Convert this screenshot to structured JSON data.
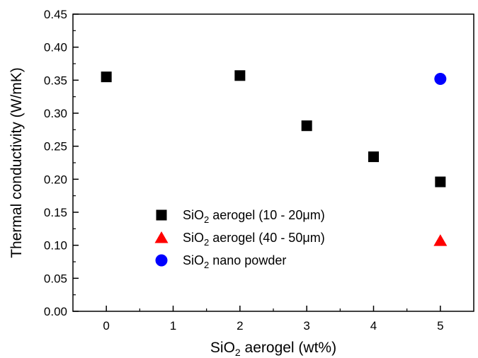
{
  "chart_data": {
    "type": "scatter",
    "xlabel": {
      "base": "SiO",
      "sub": "2",
      "rest": " aerogel (wt%)"
    },
    "ylabel": "Thermal conductivity (W/mK)",
    "xlim": [
      -0.5,
      5.5
    ],
    "ylim": [
      0.0,
      0.45
    ],
    "xtick_positions": [
      0,
      1,
      2,
      3,
      4,
      5
    ],
    "xtick_labels": [
      "0",
      "1",
      "2",
      "3",
      "4",
      "5"
    ],
    "ytick_values": [
      0.0,
      0.05,
      0.1,
      0.15,
      0.2,
      0.25,
      0.3,
      0.35,
      0.4,
      0.45
    ],
    "ytick_labels": [
      "0.00",
      "0.05",
      "0.10",
      "0.15",
      "0.20",
      "0.25",
      "0.30",
      "0.35",
      "0.40",
      "0.45"
    ],
    "grid": false,
    "legend_position": "lower-left",
    "series": [
      {
        "name": {
          "base": "SiO",
          "sub": "2",
          "rest": " aerogel (10 - 20μm)"
        },
        "marker": "square",
        "color": "#000000",
        "points": [
          {
            "x": 0,
            "y": 0.355
          },
          {
            "x": 2,
            "y": 0.357
          },
          {
            "x": 3,
            "y": 0.281
          },
          {
            "x": 4,
            "y": 0.234
          },
          {
            "x": 5,
            "y": 0.196
          }
        ]
      },
      {
        "name": {
          "base": "SiO",
          "sub": "2",
          "rest": " aerogel (40 - 50μm)"
        },
        "marker": "triangle",
        "color": "#ff0000",
        "points": [
          {
            "x": 5,
            "y": 0.107
          }
        ]
      },
      {
        "name": {
          "base": "SiO",
          "sub": "2",
          "rest": " nano powder"
        },
        "marker": "circle",
        "color": "#0000ff",
        "points": [
          {
            "x": 5,
            "y": 0.352
          }
        ]
      }
    ]
  }
}
